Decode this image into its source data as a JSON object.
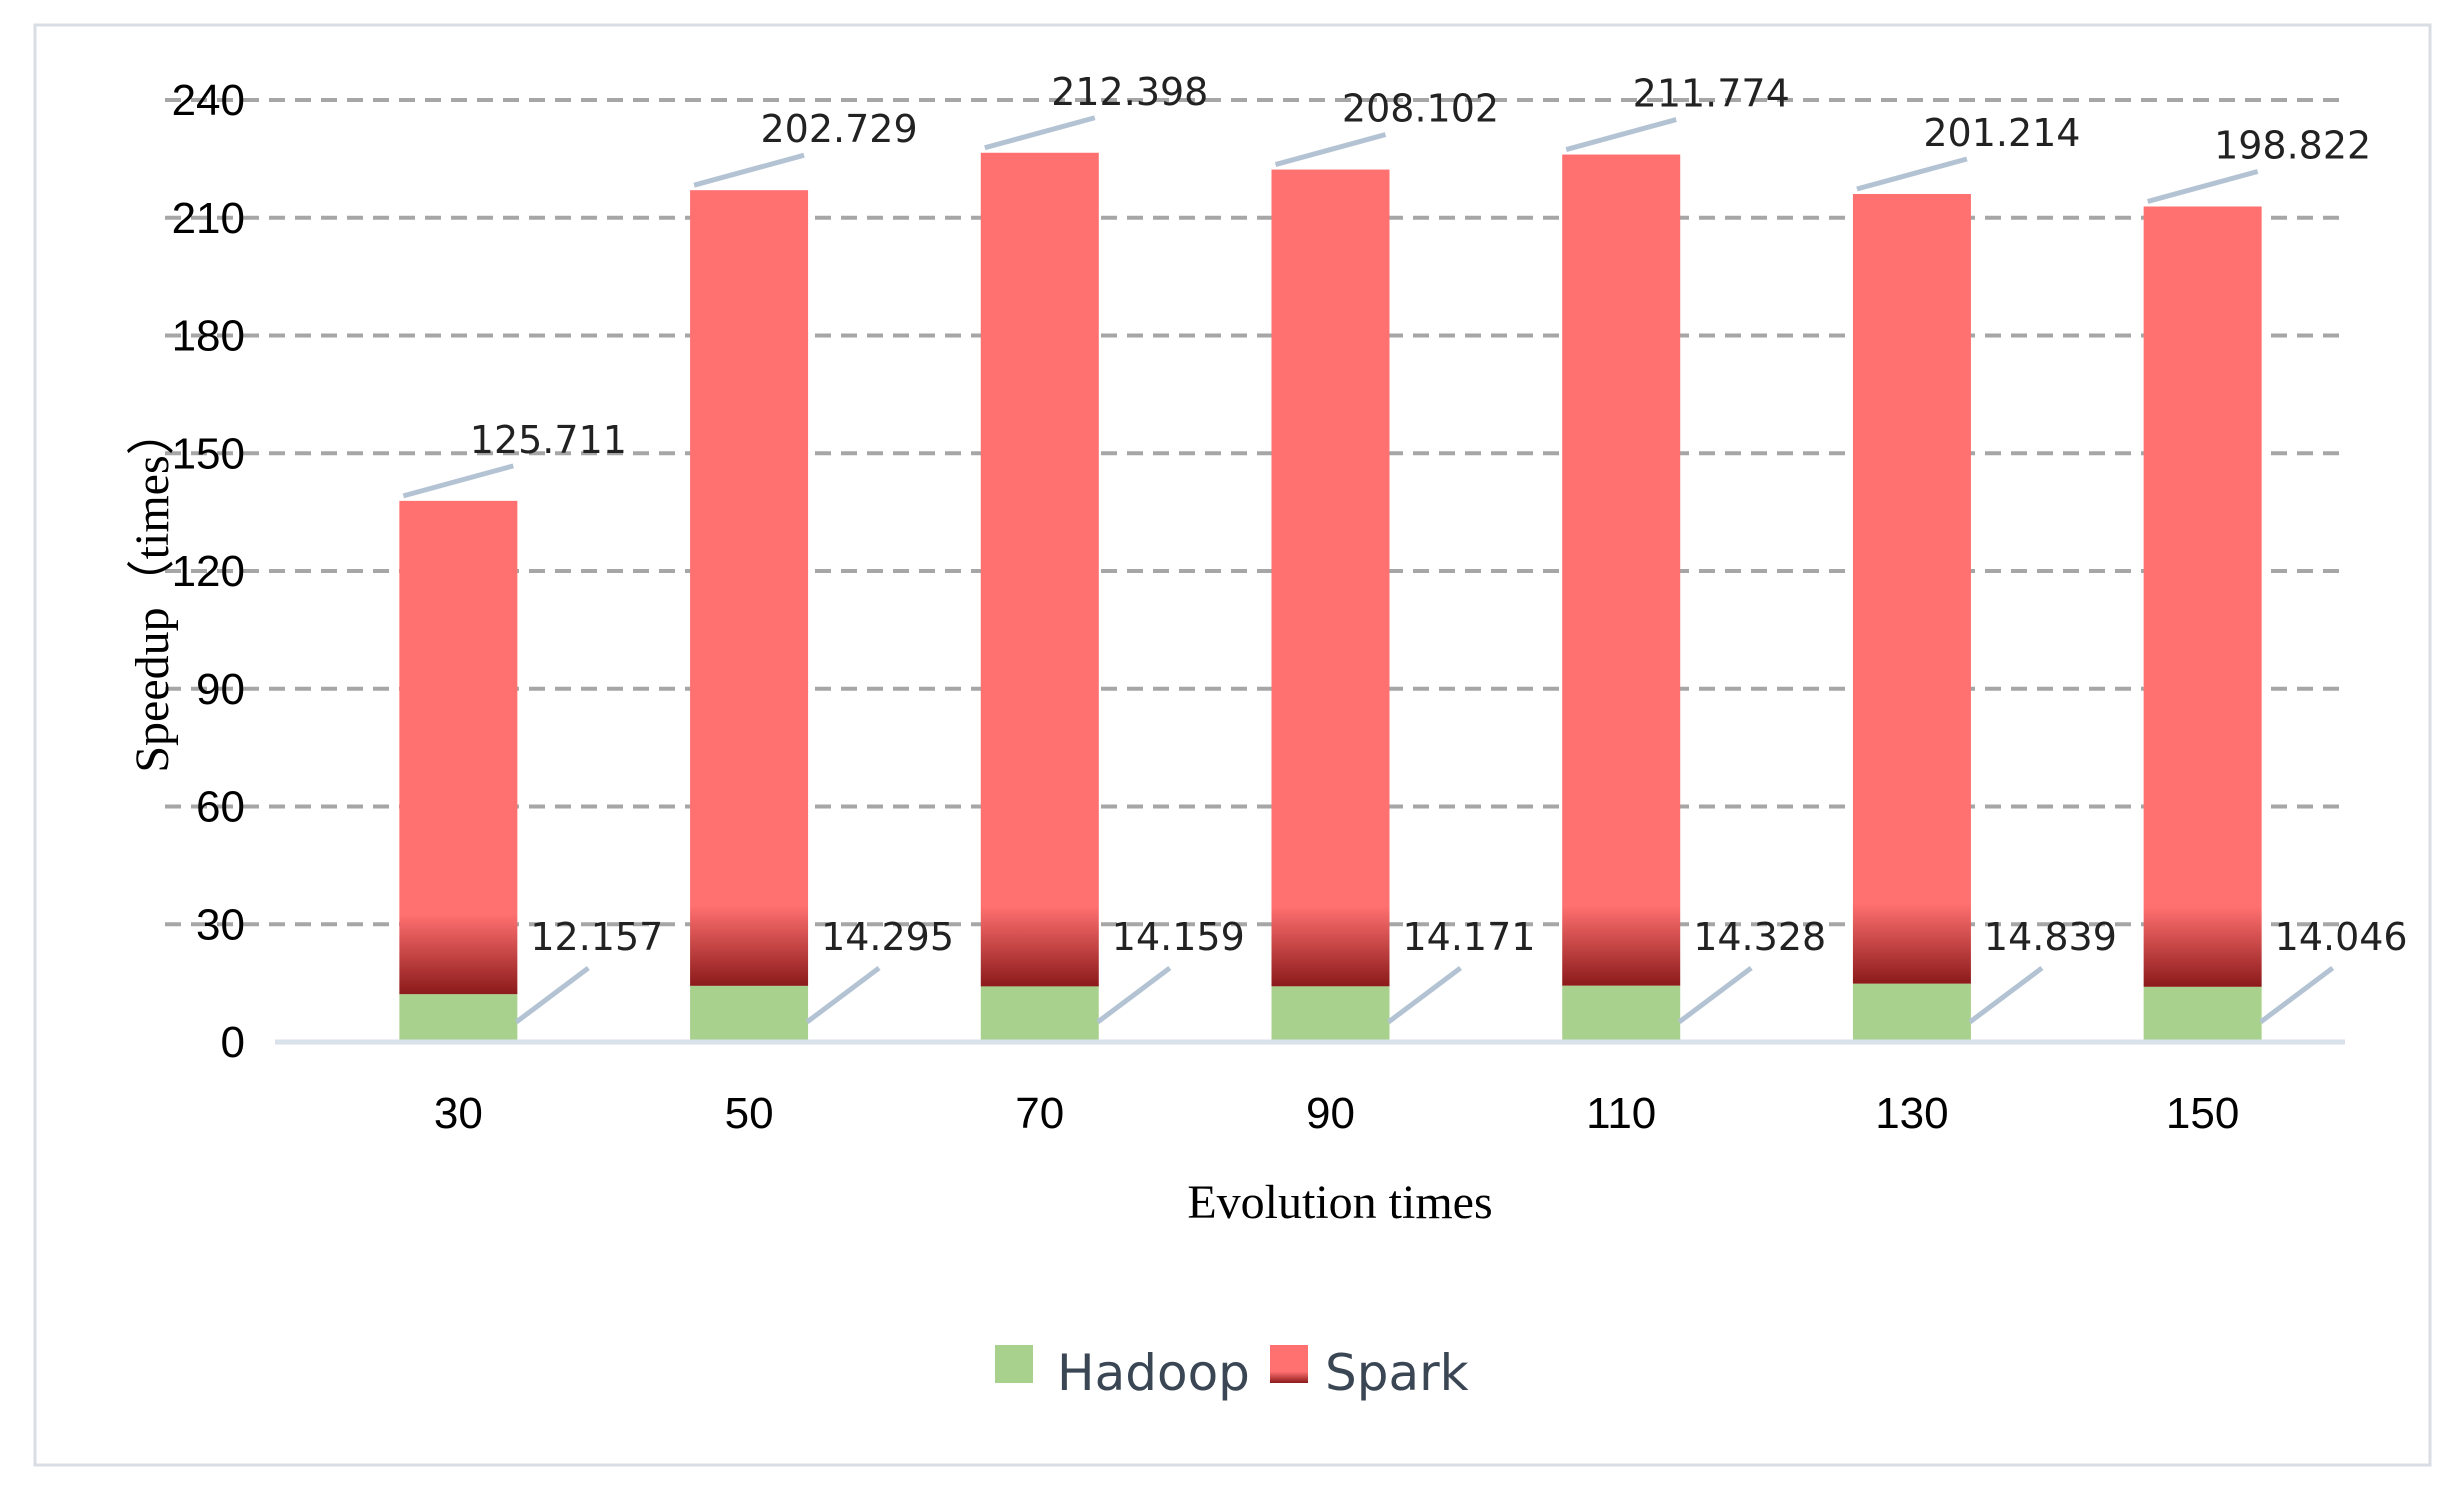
{
  "chart_data": {
    "type": "bar",
    "stacked": true,
    "categories": [
      "30",
      "50",
      "70",
      "90",
      "110",
      "130",
      "150"
    ],
    "series": [
      {
        "name": "Hadoop",
        "values": [
          12.157,
          14.295,
          14.159,
          14.171,
          14.328,
          14.839,
          14.046
        ],
        "color": "#a9d18e"
      },
      {
        "name": "Spark",
        "values": [
          125.711,
          202.729,
          212.398,
          208.102,
          211.774,
          201.214,
          198.822
        ],
        "color": "#ff7070"
      }
    ],
    "value_labels": {
      "Hadoop": [
        "12.157",
        "14.295",
        "14.159",
        "14.171",
        "14.328",
        "14.839",
        "14.046"
      ],
      "Spark": [
        "125.711",
        "202.729",
        "212.398",
        "208.102",
        "211.774",
        "201.214",
        "198.822"
      ]
    },
    "xlabel": "Evolution times",
    "ylabel": "Speedup（times）",
    "ylim": [
      0,
      240
    ],
    "yticks": [
      "0",
      "30",
      "60",
      "90",
      "120",
      "150",
      "180",
      "210",
      "240"
    ],
    "grid": true,
    "legend_position": "bottom",
    "colors": {
      "hadoop": "#a9d18e",
      "spark": "#ff7070",
      "spark_base_dark": "#8b1a1a",
      "grid": "#a6a6a6",
      "axis": "#d9e1ea",
      "leader": "#b4c3d3",
      "frame": "#d9dee5"
    }
  }
}
